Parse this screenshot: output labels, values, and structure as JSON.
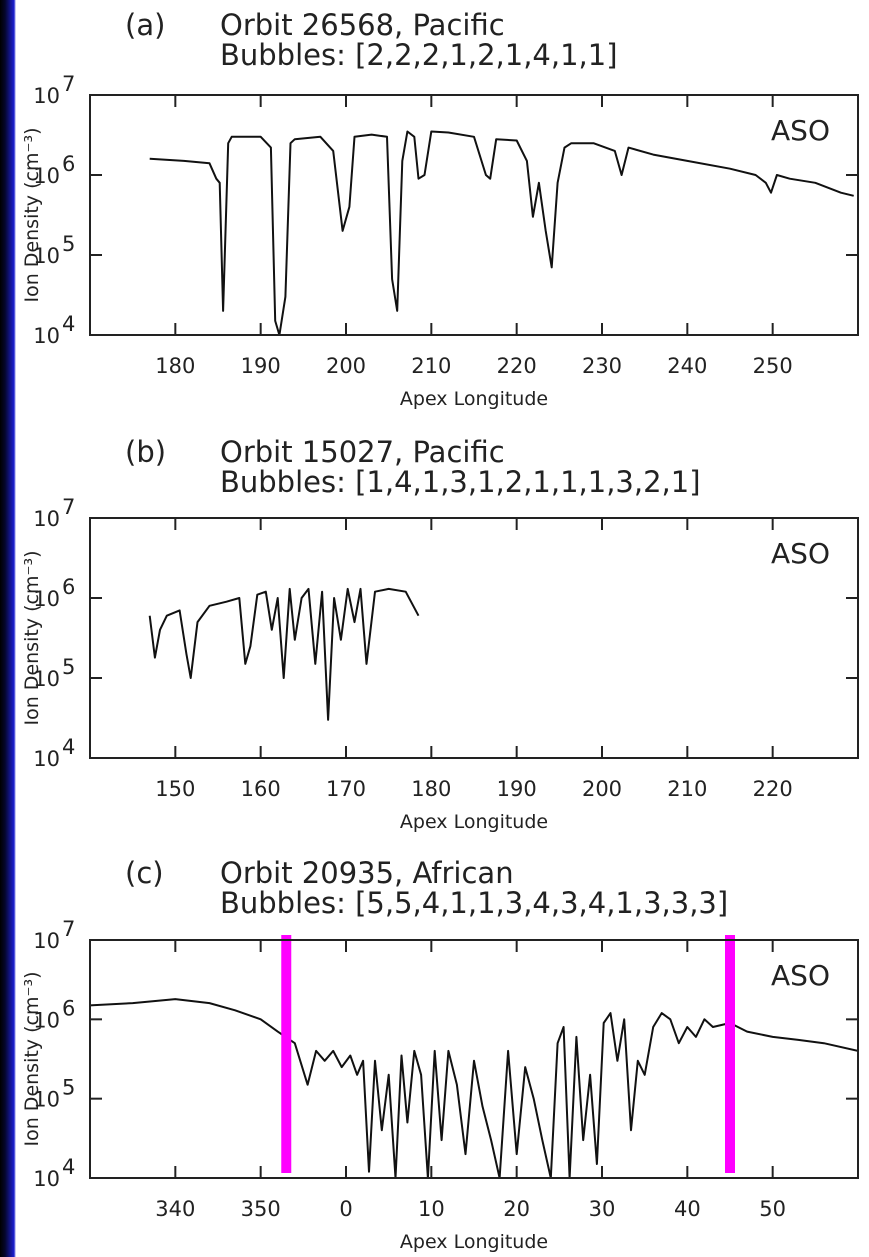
{
  "chart_data": [
    {
      "type": "line",
      "panel_label": "(a)",
      "title": "Orbit 26568,  Pacific",
      "subtitle": "Bubbles: [2,2,2,1,2,1,4,1,1]",
      "xlabel": "Apex Longitude",
      "ylabel": "Ion Density (cm⁻³)",
      "annotation": "ASO",
      "yscale": "log",
      "ylim": [
        10000,
        10000000
      ],
      "xlim": [
        170,
        260
      ],
      "x_ticks": [
        180,
        190,
        200,
        210,
        220,
        230,
        240,
        250
      ],
      "x_tick_labels": [
        "180",
        "190",
        "200",
        "210",
        "220",
        "230",
        "240",
        "250"
      ],
      "y_ticks": [
        {
          "base": "10",
          "exp": "7",
          "value": 10000000
        },
        {
          "base": "10",
          "exp": "6",
          "value": 1000000
        },
        {
          "base": "10",
          "exp": "5",
          "value": 100000
        },
        {
          "base": "10",
          "exp": "4",
          "value": 10000
        }
      ],
      "series": [
        {
          "x": [
            177,
            181,
            184,
            184.8,
            185.2,
            185.6,
            186.2,
            186.6,
            187.2,
            190,
            191.2,
            191.7,
            192.2,
            192.9,
            193.5,
            194,
            197,
            198.5,
            199.6,
            200.4,
            201,
            203,
            204.8,
            205.4,
            206,
            206.6,
            207.2,
            208,
            208.5,
            209.2,
            210,
            212,
            215,
            216.4,
            216.9,
            217.6,
            220,
            221.2,
            221.9,
            222.6,
            223.4,
            224.1,
            224.8,
            225.6,
            226.4,
            229,
            231.5,
            232.3,
            233.1,
            236,
            240,
            245,
            248,
            249.2,
            249.8,
            250.5,
            252,
            255,
            258,
            259.5
          ],
          "y": [
            1600000,
            1500000,
            1400000,
            900000,
            800000,
            20000,
            2500000,
            3000000,
            3000000,
            3000000,
            2200000,
            15000,
            10000,
            30000,
            2500000,
            2800000,
            3000000,
            2000000,
            200000,
            400000,
            3000000,
            3200000,
            3000000,
            50000,
            20000,
            1500000,
            3500000,
            3000000,
            900000,
            1000000,
            3500000,
            3400000,
            3000000,
            1000000,
            900000,
            2800000,
            2700000,
            1500000,
            300000,
            800000,
            200000,
            70000,
            800000,
            2200000,
            2500000,
            2500000,
            2000000,
            1000000,
            2200000,
            1800000,
            1500000,
            1200000,
            1000000,
            800000,
            600000,
            1000000,
            900000,
            800000,
            600000,
            550000
          ]
        }
      ],
      "vertical_markers": []
    },
    {
      "type": "line",
      "panel_label": "(b)",
      "title": "Orbit 15027,  Pacific",
      "subtitle": "Bubbles: [1,4,1,3,1,2,1,1,1,3,2,1]",
      "xlabel": "Apex Longitude",
      "ylabel": "Ion Density (cm⁻³)",
      "annotation": "ASO",
      "yscale": "log",
      "ylim": [
        10000,
        10000000
      ],
      "xlim": [
        140,
        230
      ],
      "x_ticks": [
        150,
        160,
        170,
        180,
        190,
        200,
        210,
        220
      ],
      "x_tick_labels": [
        "150",
        "160",
        "170",
        "180",
        "190",
        "200",
        "210",
        "220"
      ],
      "y_ticks": [
        {
          "base": "10",
          "exp": "7",
          "value": 10000000
        },
        {
          "base": "10",
          "exp": "6",
          "value": 1000000
        },
        {
          "base": "10",
          "exp": "5",
          "value": 100000
        },
        {
          "base": "10",
          "exp": "4",
          "value": 10000
        }
      ],
      "series": [
        {
          "x": [
            147,
            147.6,
            148.2,
            149,
            150.5,
            151.3,
            151.8,
            152.6,
            154,
            156,
            157.5,
            158.2,
            158.8,
            159.6,
            160.6,
            161.3,
            162,
            162.7,
            163.4,
            164,
            164.8,
            165.6,
            166.4,
            167.2,
            167.9,
            168.6,
            169.4,
            170.2,
            171,
            171.7,
            172.4,
            173.4,
            175,
            177,
            178.5
          ],
          "y": [
            600000,
            180000,
            400000,
            600000,
            700000,
            200000,
            100000,
            500000,
            800000,
            900000,
            1000000,
            150000,
            250000,
            1100000,
            1200000,
            400000,
            1000000,
            100000,
            1300000,
            300000,
            1000000,
            1300000,
            150000,
            1200000,
            30000,
            1000000,
            300000,
            1300000,
            500000,
            1300000,
            150000,
            1200000,
            1300000,
            1200000,
            600000
          ]
        }
      ],
      "vertical_markers": []
    },
    {
      "type": "line",
      "panel_label": "(c)",
      "title": "Orbit 20935,  African",
      "subtitle": "Bubbles: [5,5,4,1,1,3,4,3,4,1,3,3,3]",
      "xlabel": "Apex Longitude",
      "ylabel": "Ion Density (cm⁻³)",
      "annotation": "ASO",
      "yscale": "log",
      "ylim": [
        10000,
        10000000
      ],
      "xlim": [
        330,
        420
      ],
      "x_ticks": [
        340,
        350,
        360,
        370,
        380,
        390,
        400,
        410
      ],
      "x_tick_labels": [
        "340",
        "350",
        "0",
        "10",
        "20",
        "30",
        "40",
        "50"
      ],
      "y_ticks": [
        {
          "base": "10",
          "exp": "7",
          "value": 10000000
        },
        {
          "base": "10",
          "exp": "6",
          "value": 1000000
        },
        {
          "base": "10",
          "exp": "5",
          "value": 100000
        },
        {
          "base": "10",
          "exp": "4",
          "value": 10000
        }
      ],
      "series": [
        {
          "x": [
            330,
            335,
            340,
            344,
            347,
            350,
            352,
            354,
            355.5,
            356.5,
            357.5,
            358.5,
            359.5,
            360.5,
            361.3,
            362,
            362.7,
            363.4,
            364.2,
            365,
            365.8,
            366.5,
            367.2,
            368,
            368.8,
            369.6,
            370.4,
            371.2,
            372,
            373,
            374,
            375,
            376,
            377,
            378,
            379,
            380,
            381,
            382,
            383,
            384,
            384.8,
            385.5,
            386.2,
            387,
            387.8,
            388.6,
            389.4,
            390.2,
            391,
            391.8,
            392.6,
            393.4,
            394.2,
            395,
            396,
            397,
            398,
            399,
            400,
            401,
            402,
            403,
            405,
            407,
            410,
            413,
            416,
            420
          ],
          "y": [
            1500000,
            1600000,
            1800000,
            1600000,
            1300000,
            1000000,
            700000,
            500000,
            150000,
            400000,
            300000,
            400000,
            250000,
            350000,
            200000,
            300000,
            12000,
            300000,
            40000,
            200000,
            10000,
            350000,
            50000,
            400000,
            200000,
            10000,
            400000,
            30000,
            400000,
            150000,
            20000,
            300000,
            80000,
            30000,
            10000,
            400000,
            20000,
            250000,
            100000,
            30000,
            10000,
            500000,
            800000,
            10000,
            600000,
            30000,
            200000,
            15000,
            900000,
            1200000,
            300000,
            1000000,
            40000,
            300000,
            200000,
            800000,
            1200000,
            1000000,
            500000,
            800000,
            600000,
            1000000,
            800000,
            900000,
            700000,
            600000,
            550000,
            500000,
            400000
          ]
        }
      ],
      "vertical_markers": [
        {
          "x": 353,
          "color": "#ff00ff"
        },
        {
          "x": 405,
          "color": "#ff00ff"
        }
      ]
    }
  ]
}
